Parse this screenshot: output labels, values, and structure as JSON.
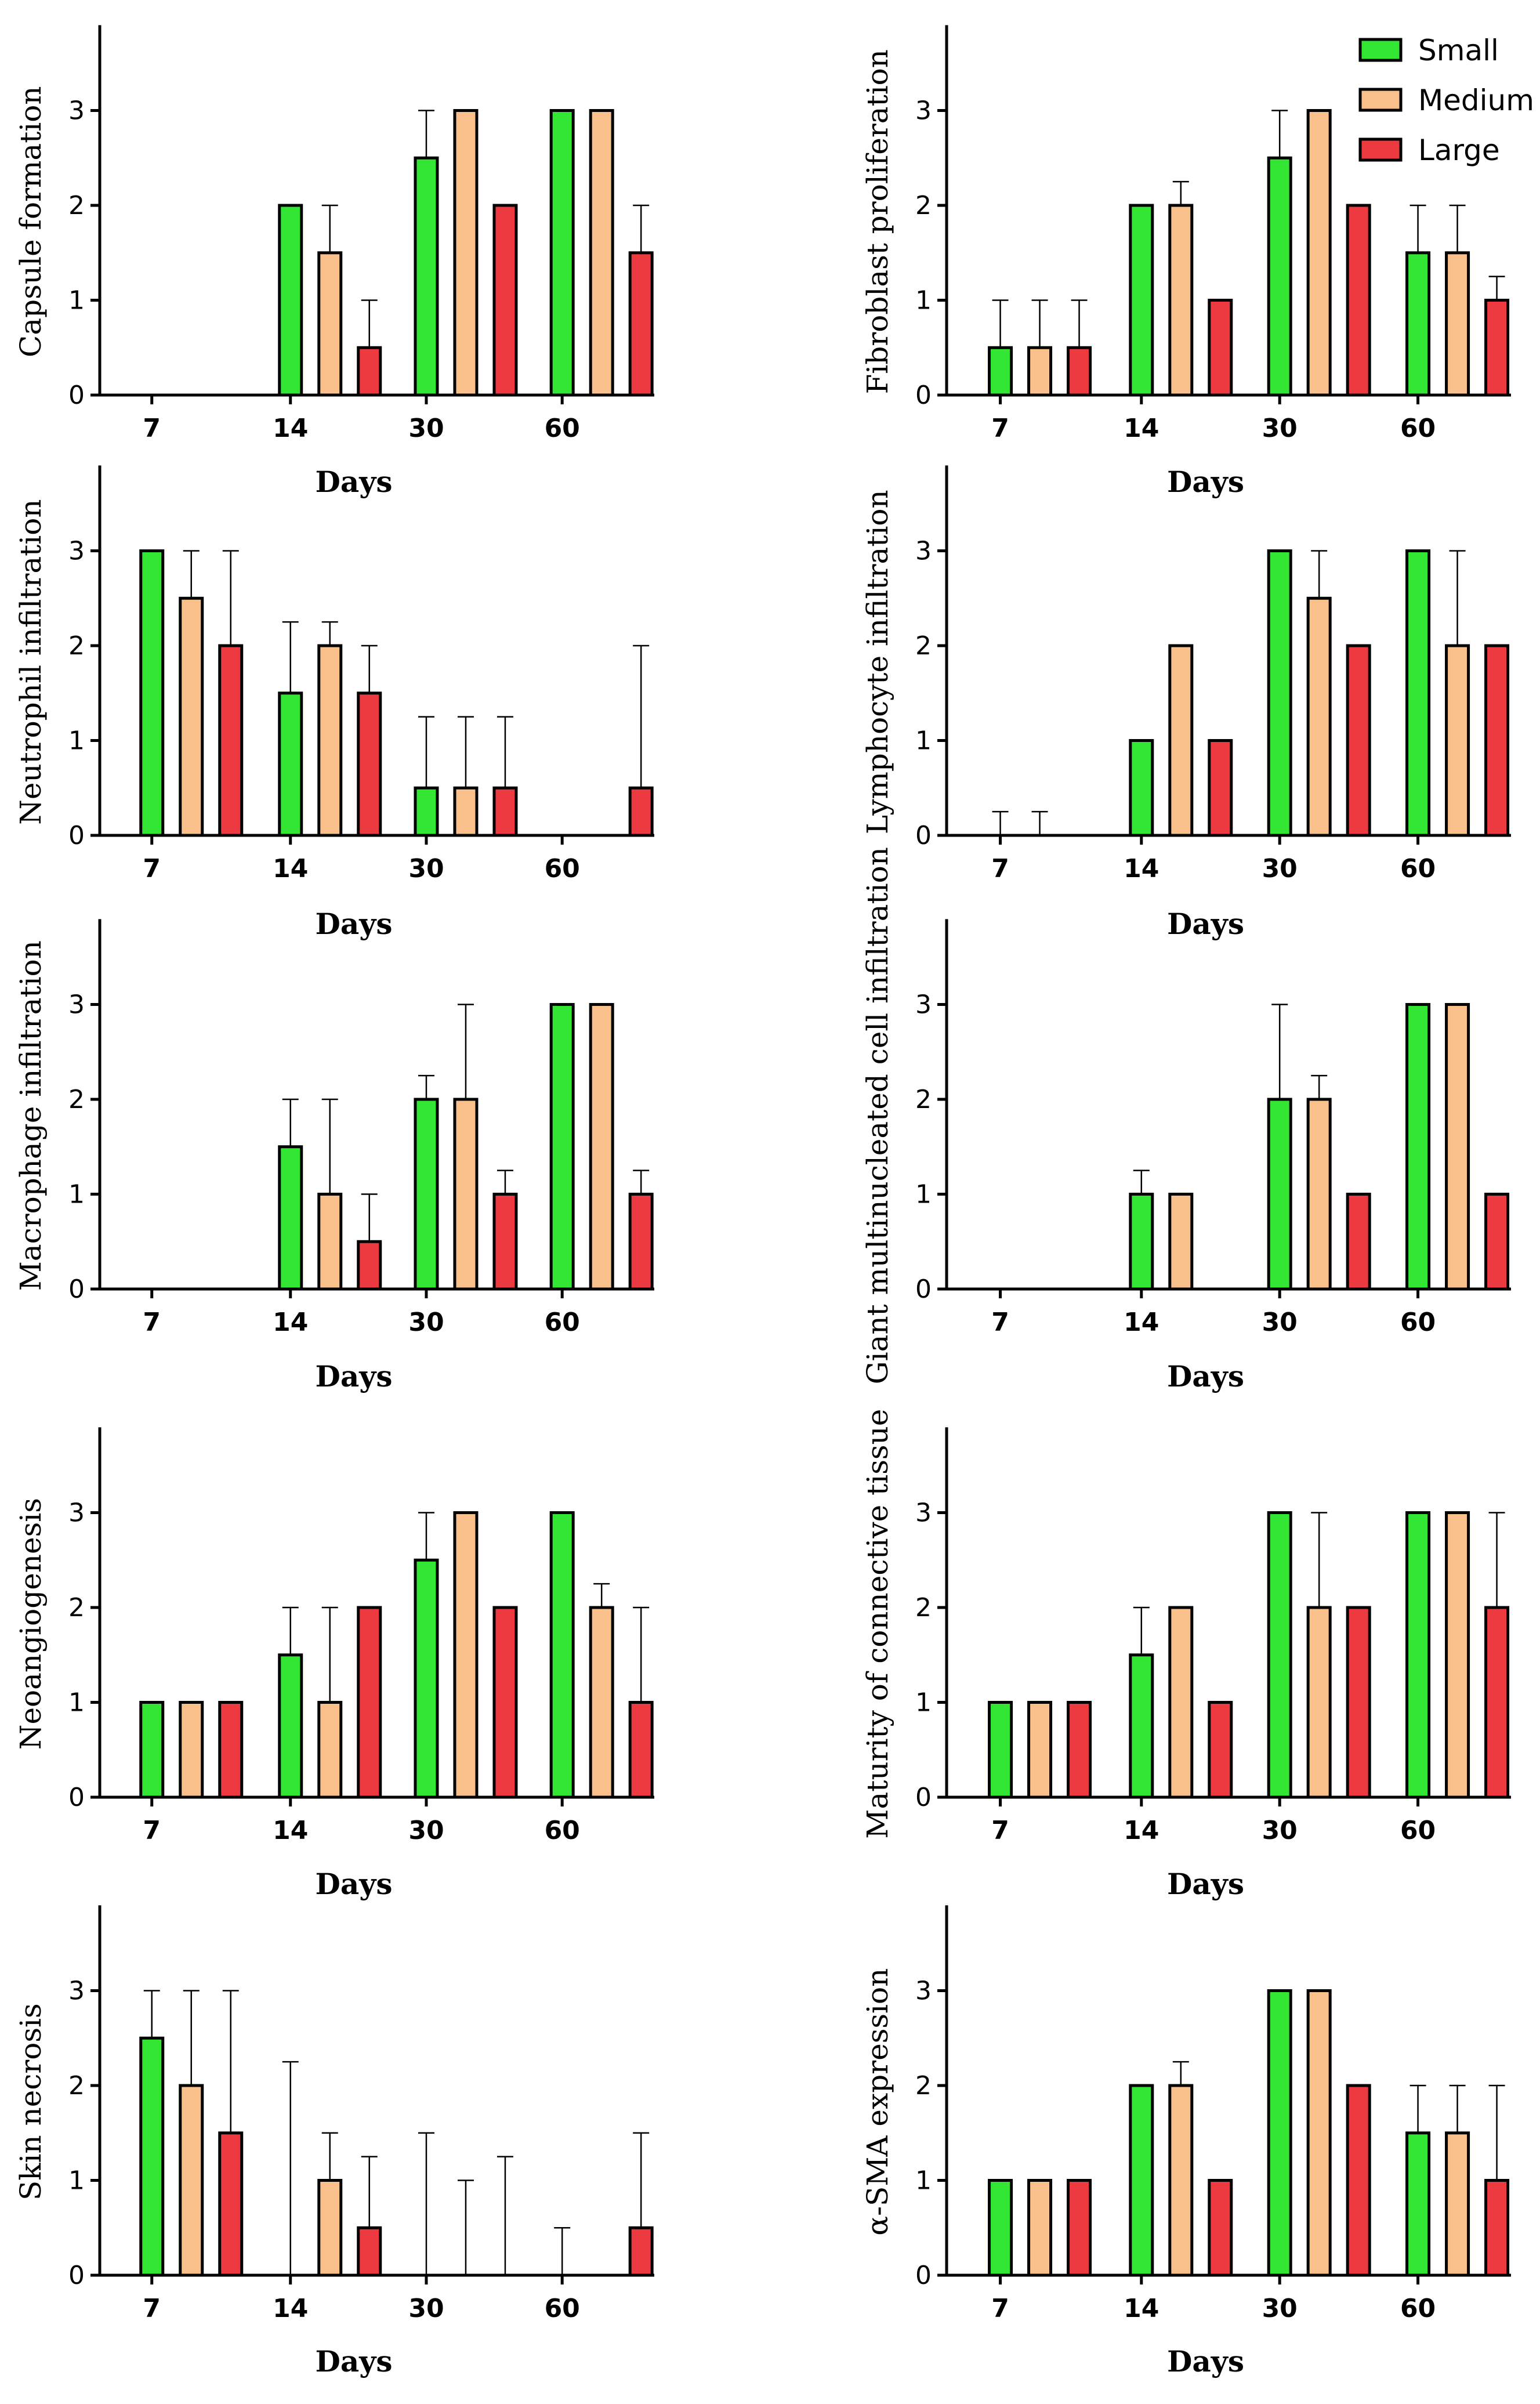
{
  "groups": [
    "Small",
    "Medium",
    "Large"
  ],
  "colors": {
    "Small": "#33e633",
    "Medium": "#f9c08c",
    "Large": "#ec3a40",
    "outline": "#000000"
  },
  "legend": [
    {
      "label": "Small",
      "color": "#33e633"
    },
    {
      "label": "Medium",
      "color": "#f9c08c"
    },
    {
      "label": "Large",
      "color": "#ec3a40"
    }
  ],
  "chart_data": [
    {
      "type": "bar",
      "ylabel": "Capsule formation",
      "xlabel": "Days",
      "categories": [
        "7",
        "14",
        "30",
        "60"
      ],
      "yticks": [
        "0",
        "1",
        "2",
        "3"
      ],
      "ylim": [
        0,
        3.9
      ],
      "series": [
        {
          "name": "Small",
          "values": [
            0,
            2,
            2.5,
            3
          ],
          "errors": [
            0,
            0,
            0.5,
            0
          ]
        },
        {
          "name": "Medium",
          "values": [
            0,
            1.5,
            3,
            3
          ],
          "errors": [
            0,
            0.5,
            0,
            0
          ]
        },
        {
          "name": "Large",
          "values": [
            0,
            0.5,
            2,
            1.5
          ],
          "errors": [
            0,
            0.5,
            0,
            0.5
          ]
        }
      ]
    },
    {
      "type": "bar",
      "ylabel": "Fibroblast proliferation",
      "xlabel": "Days",
      "categories": [
        "7",
        "14",
        "30",
        "60"
      ],
      "yticks": [
        "0",
        "1",
        "2",
        "3"
      ],
      "ylim": [
        0,
        3.9
      ],
      "series": [
        {
          "name": "Small",
          "values": [
            0.5,
            2,
            2.5,
            1.5
          ],
          "errors": [
            0.5,
            0,
            0.5,
            0.5
          ]
        },
        {
          "name": "Medium",
          "values": [
            0.5,
            2,
            3,
            1.5
          ],
          "errors": [
            0.5,
            0.25,
            0,
            0.5
          ]
        },
        {
          "name": "Large",
          "values": [
            0.5,
            1,
            2,
            1
          ],
          "errors": [
            0.5,
            0,
            0,
            0.25
          ]
        }
      ]
    },
    {
      "type": "bar",
      "ylabel": "Neutrophil infiltration",
      "xlabel": "Days",
      "categories": [
        "7",
        "14",
        "30",
        "60"
      ],
      "yticks": [
        "0",
        "1",
        "2",
        "3"
      ],
      "ylim": [
        0,
        3.9
      ],
      "series": [
        {
          "name": "Small",
          "values": [
            3,
            1.5,
            0.5,
            0
          ],
          "errors": [
            0,
            0.75,
            0.75,
            0
          ]
        },
        {
          "name": "Medium",
          "values": [
            2.5,
            2,
            0.5,
            0
          ],
          "errors": [
            0.5,
            0.25,
            0.75,
            0
          ]
        },
        {
          "name": "Large",
          "values": [
            2,
            1.5,
            0.5,
            0.5
          ],
          "errors": [
            1,
            0.5,
            0.75,
            1.5
          ]
        }
      ]
    },
    {
      "type": "bar",
      "ylabel": "Lymphocyte infiltration",
      "xlabel": "Days",
      "categories": [
        "7",
        "14",
        "30",
        "60"
      ],
      "yticks": [
        "0",
        "1",
        "2",
        "3"
      ],
      "ylim": [
        0,
        3.9
      ],
      "series": [
        {
          "name": "Small",
          "values": [
            0,
            1,
            3,
            3
          ],
          "errors": [
            0.25,
            0,
            0,
            0
          ]
        },
        {
          "name": "Medium",
          "values": [
            0,
            2,
            2.5,
            2
          ],
          "errors": [
            0.25,
            0,
            0.5,
            1
          ]
        },
        {
          "name": "Large",
          "values": [
            0,
            1,
            2,
            2
          ],
          "errors": [
            0,
            0,
            0,
            0
          ]
        }
      ]
    },
    {
      "type": "bar",
      "ylabel": "Macrophage infiltration",
      "xlabel": "Days",
      "categories": [
        "7",
        "14",
        "30",
        "60"
      ],
      "yticks": [
        "0",
        "1",
        "2",
        "3"
      ],
      "ylim": [
        0,
        3.9
      ],
      "series": [
        {
          "name": "Small",
          "values": [
            0,
            1.5,
            2,
            3
          ],
          "errors": [
            0,
            0.5,
            0.25,
            0
          ]
        },
        {
          "name": "Medium",
          "values": [
            0,
            1,
            2,
            3
          ],
          "errors": [
            0,
            1,
            1,
            0
          ]
        },
        {
          "name": "Large",
          "values": [
            0,
            0.5,
            1,
            1
          ],
          "errors": [
            0,
            0.5,
            0.25,
            0.25
          ]
        }
      ]
    },
    {
      "type": "bar",
      "ylabel": "Giant multinucleated cell infiltration",
      "xlabel": "Days",
      "categories": [
        "7",
        "14",
        "30",
        "60"
      ],
      "yticks": [
        "0",
        "1",
        "2",
        "3"
      ],
      "ylim": [
        0,
        3.9
      ],
      "series": [
        {
          "name": "Small",
          "values": [
            0,
            1,
            2,
            3
          ],
          "errors": [
            0,
            0.25,
            1,
            0
          ]
        },
        {
          "name": "Medium",
          "values": [
            0,
            1,
            2,
            3
          ],
          "errors": [
            0,
            0,
            0.25,
            0
          ]
        },
        {
          "name": "Large",
          "values": [
            0,
            0,
            1,
            1
          ],
          "errors": [
            0,
            0,
            0,
            0
          ]
        }
      ]
    },
    {
      "type": "bar",
      "ylabel": "Neoangiogenesis",
      "xlabel": "Days",
      "categories": [
        "7",
        "14",
        "30",
        "60"
      ],
      "yticks": [
        "0",
        "1",
        "2",
        "3"
      ],
      "ylim": [
        0,
        3.9
      ],
      "series": [
        {
          "name": "Small",
          "values": [
            1,
            1.5,
            2.5,
            3
          ],
          "errors": [
            0,
            0.5,
            0.5,
            0
          ]
        },
        {
          "name": "Medium",
          "values": [
            1,
            1,
            3,
            2
          ],
          "errors": [
            0,
            1,
            0,
            0.25
          ]
        },
        {
          "name": "Large",
          "values": [
            1,
            2,
            2,
            1
          ],
          "errors": [
            0,
            0,
            0,
            1
          ]
        }
      ]
    },
    {
      "type": "bar",
      "ylabel": "Maturity of connective tissue",
      "xlabel": "Days",
      "categories": [
        "7",
        "14",
        "30",
        "60"
      ],
      "yticks": [
        "0",
        "1",
        "2",
        "3"
      ],
      "ylim": [
        0,
        3.9
      ],
      "series": [
        {
          "name": "Small",
          "values": [
            1,
            1.5,
            3,
            3
          ],
          "errors": [
            0,
            0.5,
            0,
            0
          ]
        },
        {
          "name": "Medium",
          "values": [
            1,
            2,
            2,
            3
          ],
          "errors": [
            0,
            0,
            1,
            0
          ]
        },
        {
          "name": "Large",
          "values": [
            1,
            1,
            2,
            2
          ],
          "errors": [
            0,
            0,
            0,
            1
          ]
        }
      ]
    },
    {
      "type": "bar",
      "ylabel": "Skin necrosis",
      "xlabel": "Days",
      "categories": [
        "7",
        "14",
        "30",
        "60"
      ],
      "yticks": [
        "0",
        "1",
        "2",
        "3"
      ],
      "ylim": [
        0,
        3.9
      ],
      "series": [
        {
          "name": "Small",
          "values": [
            2.5,
            0,
            0,
            0
          ],
          "errors": [
            0.5,
            2.25,
            1.5,
            0.5
          ]
        },
        {
          "name": "Medium",
          "values": [
            2,
            1,
            0,
            0
          ],
          "errors": [
            1,
            0.5,
            1,
            0
          ]
        },
        {
          "name": "Large",
          "values": [
            1.5,
            0.5,
            0,
            0.5
          ],
          "errors": [
            1.5,
            0.75,
            1.25,
            1
          ]
        }
      ]
    },
    {
      "type": "bar",
      "ylabel": "α-SMA expression",
      "xlabel": "Days",
      "categories": [
        "7",
        "14",
        "30",
        "60"
      ],
      "yticks": [
        "0",
        "1",
        "2",
        "3"
      ],
      "ylim": [
        0,
        3.9
      ],
      "series": [
        {
          "name": "Small",
          "values": [
            1,
            2,
            3,
            1.5
          ],
          "errors": [
            0,
            0,
            0,
            0.5
          ]
        },
        {
          "name": "Medium",
          "values": [
            1,
            2,
            3,
            1.5
          ],
          "errors": [
            0,
            0.25,
            0,
            0.5
          ]
        },
        {
          "name": "Large",
          "values": [
            1,
            1,
            2,
            1
          ],
          "errors": [
            0,
            0,
            0,
            1
          ]
        }
      ]
    }
  ]
}
